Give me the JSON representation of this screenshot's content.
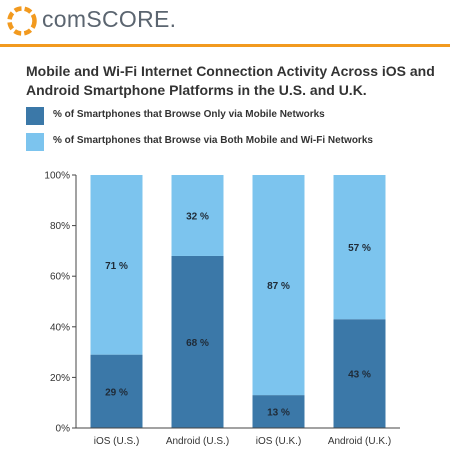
{
  "header": {
    "brand": "comSCORE.",
    "accent_color": "#f29a1f",
    "logo_icon": "comscore-logo-icon"
  },
  "title": "Mobile and Wi-Fi Internet Connection Activity Across iOS and Android Smartphone Platforms in the U.S. and U.K.",
  "chart_data": {
    "type": "bar",
    "stacked": true,
    "categories": [
      "iOS (U.S.)",
      "Android (U.S.)",
      "iOS (U.K.)",
      "Android (U.K.)"
    ],
    "series": [
      {
        "name": "% of Smartphones that Browse Only via Mobile Networks",
        "values": [
          29,
          68,
          13,
          43
        ],
        "labels": [
          "29 %",
          "68 %",
          "13 %",
          "43 %"
        ],
        "color": "#3b78a8"
      },
      {
        "name": "% of Smartphones that Browse via Both Mobile and Wi-Fi Networks",
        "values": [
          71,
          32,
          87,
          57
        ],
        "labels": [
          "71 %",
          "32 %",
          "87 %",
          "57 %"
        ],
        "color": "#7cc4ee"
      }
    ],
    "y_ticks": [
      "0%",
      "20%",
      "40%",
      "60%",
      "80%",
      "100%"
    ],
    "ylim": [
      0,
      100
    ],
    "legend_position": "top",
    "grid": false
  }
}
